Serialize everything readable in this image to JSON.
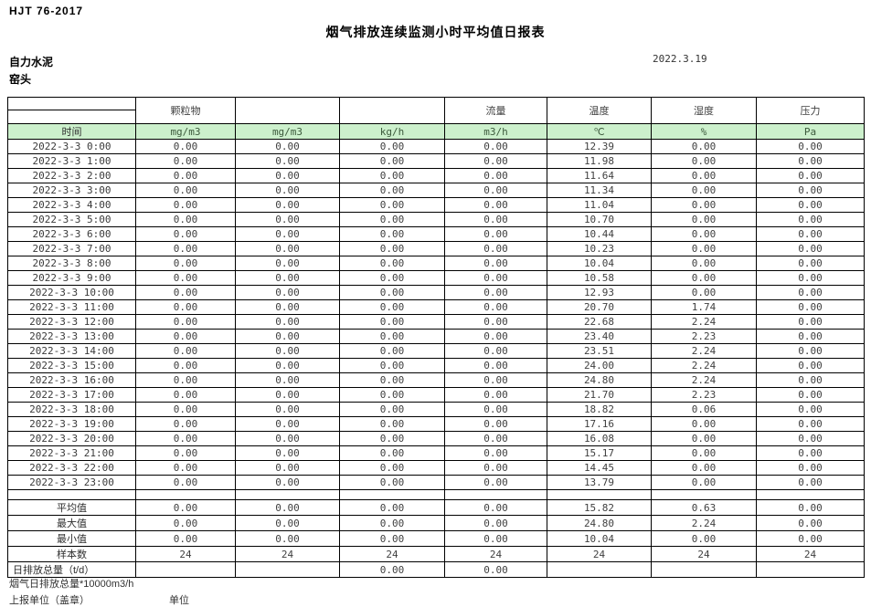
{
  "header": {
    "standard": "HJT 76-2017",
    "title": "烟气排放连续监测小时平均值日报表",
    "company": "自力水泥",
    "station": "窑头",
    "date": "2022.3.19"
  },
  "colors": {
    "header_green": "#ccf0cc"
  },
  "table": {
    "group_headers": [
      "",
      "颗粒物",
      "",
      "",
      "流量",
      "温度",
      "湿度",
      "压力"
    ],
    "units": [
      "时间",
      "mg/m3",
      "mg/m3",
      "kg/h",
      "m3/h",
      "℃",
      "%",
      "Pa"
    ],
    "rows": [
      {
        "time": "2022-3-3 0:00",
        "values": [
          "0.00",
          "0.00",
          "0.00",
          "0.00",
          "12.39",
          "0.00",
          "0.00"
        ]
      },
      {
        "time": "2022-3-3 1:00",
        "values": [
          "0.00",
          "0.00",
          "0.00",
          "0.00",
          "11.98",
          "0.00",
          "0.00"
        ]
      },
      {
        "time": "2022-3-3 2:00",
        "values": [
          "0.00",
          "0.00",
          "0.00",
          "0.00",
          "11.64",
          "0.00",
          "0.00"
        ]
      },
      {
        "time": "2022-3-3 3:00",
        "values": [
          "0.00",
          "0.00",
          "0.00",
          "0.00",
          "11.34",
          "0.00",
          "0.00"
        ]
      },
      {
        "time": "2022-3-3 4:00",
        "values": [
          "0.00",
          "0.00",
          "0.00",
          "0.00",
          "11.04",
          "0.00",
          "0.00"
        ]
      },
      {
        "time": "2022-3-3 5:00",
        "values": [
          "0.00",
          "0.00",
          "0.00",
          "0.00",
          "10.70",
          "0.00",
          "0.00"
        ]
      },
      {
        "time": "2022-3-3 6:00",
        "values": [
          "0.00",
          "0.00",
          "0.00",
          "0.00",
          "10.44",
          "0.00",
          "0.00"
        ]
      },
      {
        "time": "2022-3-3 7:00",
        "values": [
          "0.00",
          "0.00",
          "0.00",
          "0.00",
          "10.23",
          "0.00",
          "0.00"
        ]
      },
      {
        "time": "2022-3-3 8:00",
        "values": [
          "0.00",
          "0.00",
          "0.00",
          "0.00",
          "10.04",
          "0.00",
          "0.00"
        ]
      },
      {
        "time": "2022-3-3 9:00",
        "values": [
          "0.00",
          "0.00",
          "0.00",
          "0.00",
          "10.58",
          "0.00",
          "0.00"
        ]
      },
      {
        "time": "2022-3-3 10:00",
        "values": [
          "0.00",
          "0.00",
          "0.00",
          "0.00",
          "12.93",
          "0.00",
          "0.00"
        ]
      },
      {
        "time": "2022-3-3 11:00",
        "values": [
          "0.00",
          "0.00",
          "0.00",
          "0.00",
          "20.70",
          "1.74",
          "0.00"
        ]
      },
      {
        "time": "2022-3-3 12:00",
        "values": [
          "0.00",
          "0.00",
          "0.00",
          "0.00",
          "22.68",
          "2.24",
          "0.00"
        ]
      },
      {
        "time": "2022-3-3 13:00",
        "values": [
          "0.00",
          "0.00",
          "0.00",
          "0.00",
          "23.40",
          "2.23",
          "0.00"
        ]
      },
      {
        "time": "2022-3-3 14:00",
        "values": [
          "0.00",
          "0.00",
          "0.00",
          "0.00",
          "23.51",
          "2.24",
          "0.00"
        ]
      },
      {
        "time": "2022-3-3 15:00",
        "values": [
          "0.00",
          "0.00",
          "0.00",
          "0.00",
          "24.00",
          "2.24",
          "0.00"
        ]
      },
      {
        "time": "2022-3-3 16:00",
        "values": [
          "0.00",
          "0.00",
          "0.00",
          "0.00",
          "24.80",
          "2.24",
          "0.00"
        ]
      },
      {
        "time": "2022-3-3 17:00",
        "values": [
          "0.00",
          "0.00",
          "0.00",
          "0.00",
          "21.70",
          "2.23",
          "0.00"
        ]
      },
      {
        "time": "2022-3-3 18:00",
        "values": [
          "0.00",
          "0.00",
          "0.00",
          "0.00",
          "18.82",
          "0.06",
          "0.00"
        ]
      },
      {
        "time": "2022-3-3 19:00",
        "values": [
          "0.00",
          "0.00",
          "0.00",
          "0.00",
          "17.16",
          "0.00",
          "0.00"
        ]
      },
      {
        "time": "2022-3-3 20:00",
        "values": [
          "0.00",
          "0.00",
          "0.00",
          "0.00",
          "16.08",
          "0.00",
          "0.00"
        ]
      },
      {
        "time": "2022-3-3 21:00",
        "values": [
          "0.00",
          "0.00",
          "0.00",
          "0.00",
          "15.17",
          "0.00",
          "0.00"
        ]
      },
      {
        "time": "2022-3-3 22:00",
        "values": [
          "0.00",
          "0.00",
          "0.00",
          "0.00",
          "14.45",
          "0.00",
          "0.00"
        ]
      },
      {
        "time": "2022-3-3 23:00",
        "values": [
          "0.00",
          "0.00",
          "0.00",
          "0.00",
          "13.79",
          "0.00",
          "0.00"
        ]
      }
    ],
    "summary": [
      {
        "label": "平均值",
        "left": false,
        "values": [
          "0.00",
          "0.00",
          "0.00",
          "0.00",
          "15.82",
          "0.63",
          "0.00"
        ]
      },
      {
        "label": "最大值",
        "left": false,
        "values": [
          "0.00",
          "0.00",
          "0.00",
          "0.00",
          "24.80",
          "2.24",
          "0.00"
        ]
      },
      {
        "label": "最小值",
        "left": false,
        "values": [
          "0.00",
          "0.00",
          "0.00",
          "0.00",
          "10.04",
          "0.00",
          "0.00"
        ]
      },
      {
        "label": "样本数",
        "left": false,
        "values": [
          "24",
          "24",
          "24",
          "24",
          "24",
          "24",
          "24"
        ]
      },
      {
        "label": "日排放总量（t/d）",
        "left": true,
        "values": [
          "",
          "",
          "0.00",
          "0.00",
          "",
          "",
          ""
        ]
      }
    ]
  },
  "footer": {
    "note": "烟气日排放总量*10000m3/h",
    "report_unit": "上报单位（盖章）",
    "unit_label": "单位"
  }
}
